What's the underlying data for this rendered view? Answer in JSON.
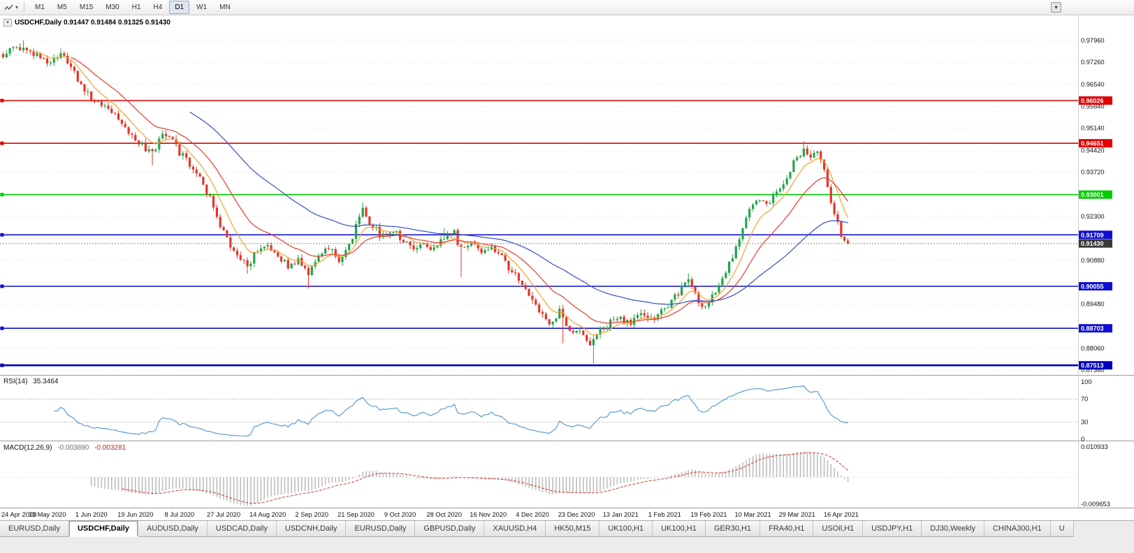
{
  "toolbar": {
    "timeframes": [
      "M1",
      "M5",
      "M15",
      "M30",
      "H1",
      "H4",
      "D1",
      "W1",
      "MN"
    ],
    "active_timeframe": "D1"
  },
  "chart": {
    "symbol": "USDCHF",
    "period": "Daily",
    "open": "0.91447",
    "high": "0.91484",
    "low": "0.91325",
    "close": "0.91430",
    "title_line": "USDCHF,Daily 0.91447 0.91484 0.91325 0.91430"
  },
  "indicators": {
    "rsi_label": "RSI(14)",
    "rsi_value": "35.3464",
    "macd_label": "MACD(12,26,9)",
    "macd_value": "-0.003890",
    "macd_signal_value": "-0.003281"
  },
  "tabs": [
    "EURUSD,Daily",
    "USDCHF,Daily",
    "AUDUSD,Daily",
    "USDCAD,Daily",
    "USDCNH,Daily",
    "EURUSD,Daily",
    "GBPUSD,Daily",
    "XAUUSD,H4",
    "HK50,M15",
    "UK100,H1",
    "UK100,H1",
    "GER30,H1",
    "FRA40,H1",
    "USOil,H1",
    "USDJPY,H1",
    "DJ30,Weekly",
    "CHINA300,H1",
    "U"
  ],
  "active_tab_index": 1,
  "chart_data": {
    "type": "candlestick",
    "title": "USDCHF,Daily",
    "x_labels": [
      "24 Apr 2020",
      "13 May 2020",
      "1 Jun 2020",
      "19 Jun 2020",
      "8 Jul 2020",
      "27 Jul 2020",
      "14 Aug 2020",
      "2 Sep 2020",
      "21 Sep 2020",
      "9 Oct 2020",
      "28 Oct 2020",
      "16 Nov 2020",
      "4 Dec 2020",
      "23 Dec 2020",
      "13 Jan 2021",
      "1 Feb 2021",
      "19 Feb 2021",
      "10 Mar 2021",
      "29 Mar 2021",
      "16 Apr 2021"
    ],
    "candles_per_label": 13,
    "num_candles": 250,
    "ylim": [
      0.87226,
      0.98719
    ],
    "current_price": 0.9143,
    "axis_ticks": [
      0.9796,
      0.9726,
      0.9654,
      0.9584,
      0.9514,
      0.9442,
      0.9372,
      0.923,
      0.9088,
      0.8948,
      0.8806,
      0.8736
    ],
    "grid_levels": [
      0.9796,
      0.9726,
      0.9654,
      0.9584,
      0.9514,
      0.9442,
      0.9372,
      0.9301,
      0.923,
      0.9159,
      0.9088,
      0.9018,
      0.8948,
      0.8877,
      0.8806,
      0.8736
    ],
    "hlines": [
      {
        "value": 0.96026,
        "color": "#e00000",
        "width": 1.6
      },
      {
        "value": 0.94651,
        "color": "#e00000",
        "width": 1.6
      },
      {
        "value": 0.93001,
        "color": "#00cc00",
        "width": 1.6
      },
      {
        "value": 0.91709,
        "color": "#1010d0",
        "width": 1.6
      },
      {
        "value": 0.90055,
        "color": "#1010d0",
        "width": 1.6
      },
      {
        "value": 0.88703,
        "color": "#1010d0",
        "width": 1.6
      },
      {
        "value": 0.87513,
        "color": "#0000bb",
        "width": 2.6
      }
    ],
    "price_anchors": [
      [
        0,
        0.9742
      ],
      [
        4,
        0.9778
      ],
      [
        8,
        0.976
      ],
      [
        13,
        0.9722
      ],
      [
        17,
        0.9754
      ],
      [
        20,
        0.9718
      ],
      [
        23,
        0.9648
      ],
      [
        26,
        0.9612
      ],
      [
        29,
        0.9585
      ],
      [
        33,
        0.9562
      ],
      [
        36,
        0.9515
      ],
      [
        40,
        0.9468
      ],
      [
        44,
        0.943
      ],
      [
        47,
        0.9496
      ],
      [
        50,
        0.947
      ],
      [
        52,
        0.9434
      ],
      [
        55,
        0.94
      ],
      [
        58,
        0.9362
      ],
      [
        61,
        0.9285
      ],
      [
        65,
        0.9175
      ],
      [
        68,
        0.9122
      ],
      [
        72,
        0.9068
      ],
      [
        75,
        0.9122
      ],
      [
        78,
        0.914
      ],
      [
        81,
        0.91
      ],
      [
        84,
        0.907
      ],
      [
        87,
        0.9092
      ],
      [
        90,
        0.9045
      ],
      [
        93,
        0.9098
      ],
      [
        96,
        0.913
      ],
      [
        99,
        0.909
      ],
      [
        102,
        0.914
      ],
      [
        106,
        0.925
      ],
      [
        109,
        0.9196
      ],
      [
        112,
        0.9164
      ],
      [
        115,
        0.9186
      ],
      [
        118,
        0.9154
      ],
      [
        121,
        0.913
      ],
      [
        124,
        0.9144
      ],
      [
        127,
        0.912
      ],
      [
        130,
        0.9166
      ],
      [
        133,
        0.9176
      ],
      [
        135,
        0.9122
      ],
      [
        138,
        0.914
      ],
      [
        141,
        0.912
      ],
      [
        144,
        0.913
      ],
      [
        147,
        0.9096
      ],
      [
        150,
        0.9054
      ],
      [
        153,
        0.901
      ],
      [
        156,
        0.8954
      ],
      [
        159,
        0.8906
      ],
      [
        162,
        0.8882
      ],
      [
        164,
        0.893
      ],
      [
        167,
        0.886
      ],
      [
        170,
        0.8872
      ],
      [
        173,
        0.8814
      ],
      [
        176,
        0.8862
      ],
      [
        179,
        0.8892
      ],
      [
        182,
        0.8902
      ],
      [
        185,
        0.888
      ],
      [
        188,
        0.8926
      ],
      [
        191,
        0.89
      ],
      [
        194,
        0.893
      ],
      [
        197,
        0.8954
      ],
      [
        200,
        0.9
      ],
      [
        202,
        0.9034
      ],
      [
        204,
        0.8974
      ],
      [
        206,
        0.8944
      ],
      [
        208,
        0.8958
      ],
      [
        211,
        0.9014
      ],
      [
        214,
        0.908
      ],
      [
        217,
        0.9154
      ],
      [
        220,
        0.9256
      ],
      [
        222,
        0.9284
      ],
      [
        225,
        0.926
      ],
      [
        228,
        0.9308
      ],
      [
        231,
        0.9354
      ],
      [
        233,
        0.94
      ],
      [
        236,
        0.9444
      ],
      [
        238,
        0.9414
      ],
      [
        240,
        0.944
      ],
      [
        242,
        0.9374
      ],
      [
        244,
        0.9272
      ],
      [
        246,
        0.9205
      ],
      [
        247,
        0.9172
      ],
      [
        248,
        0.9155
      ],
      [
        249,
        0.9143
      ]
    ],
    "spikes": [
      [
        6,
        0.9796,
        null
      ],
      [
        17,
        0.977,
        null
      ],
      [
        44,
        null,
        0.9394
      ],
      [
        47,
        0.9508,
        null
      ],
      [
        72,
        null,
        0.9046
      ],
      [
        90,
        null,
        0.8998
      ],
      [
        106,
        0.9276,
        null
      ],
      [
        130,
        0.9192,
        null
      ],
      [
        135,
        null,
        0.9036
      ],
      [
        165,
        null,
        0.8822
      ],
      [
        174,
        null,
        0.8757
      ],
      [
        202,
        0.9046,
        null
      ],
      [
        236,
        0.9472,
        null
      ]
    ],
    "ma": [
      {
        "period": 8,
        "color": "#f0a32e"
      },
      {
        "period": 20,
        "color": "#e8392b"
      },
      {
        "period": 55,
        "color": "#3550c4"
      }
    ],
    "colors": {
      "bull": "#21a54b",
      "bear": "#e53528",
      "rsi_line": "#5b9bd5",
      "macd_hist": "#bdbdbd",
      "macd_signal": "#d23a2e",
      "current_price_badge": "#3a3a3a"
    },
    "rsi": {
      "period": 14,
      "levels": [
        100,
        70,
        30,
        0
      ]
    },
    "macd": {
      "fast": 12,
      "slow": 26,
      "signal": 9,
      "scale_max": 0.010933,
      "scale_min": -0.009653
    }
  }
}
